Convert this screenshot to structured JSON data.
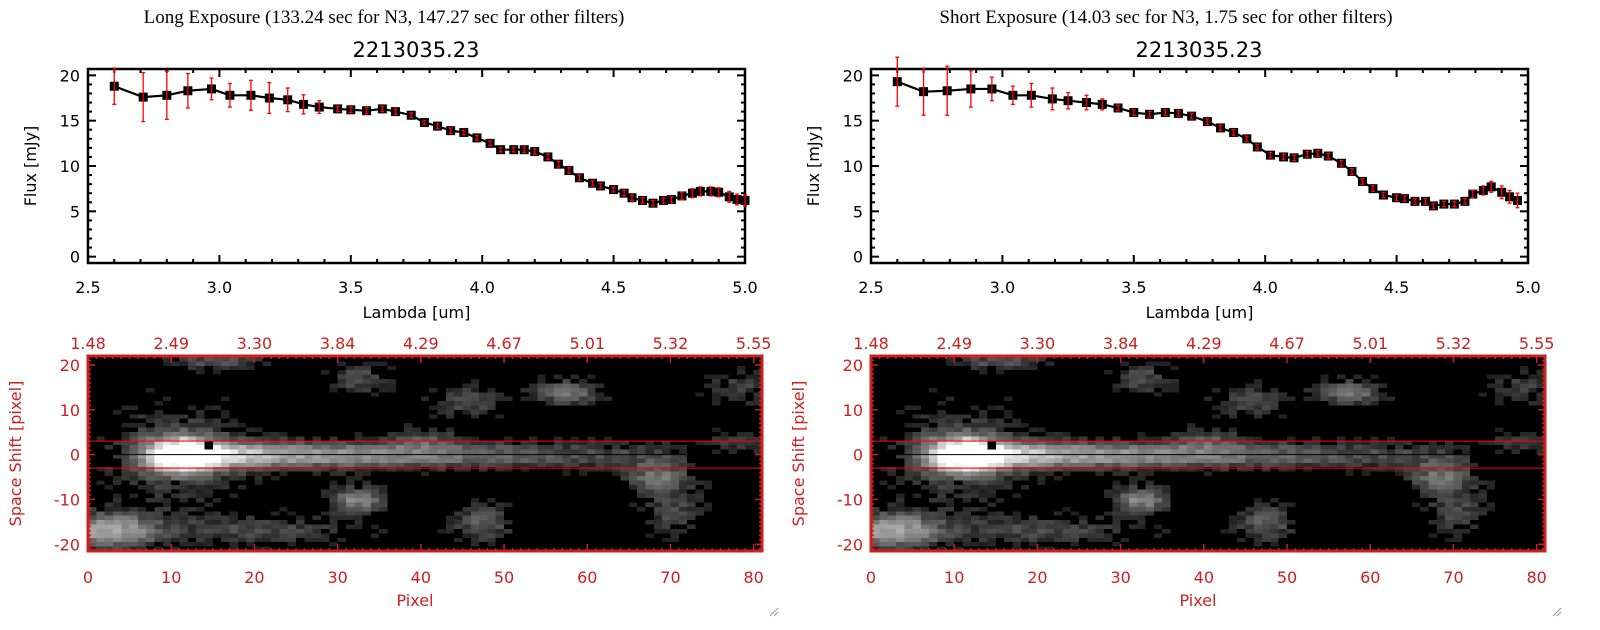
{
  "colors": {
    "data_line": "#000000",
    "error_bar": "#ff0000",
    "heatmap_axes": "#cc2020",
    "slit_lines": "#ff0000"
  },
  "panels": [
    {
      "title": "Long Exposure (133.24 sec for N3, 147.27 sec for other filters)",
      "object_name": "2213035.23"
    },
    {
      "title": "Short Exposure (14.03 sec for N3, 1.75 sec for other filters)",
      "object_name": "2213035.23"
    }
  ],
  "chart_data": [
    {
      "type": "line",
      "panel": "long",
      "title": "2213035.23",
      "xlabel": "Lambda [um]",
      "ylabel": "Flux [mJy]",
      "xlim": [
        2.5,
        5.0
      ],
      "ylim": [
        -0.7,
        20.7
      ],
      "xticks": [
        "2.5",
        "3.0",
        "3.5",
        "4.0",
        "4.5",
        "5.0"
      ],
      "yticks": [
        "0",
        "5",
        "10",
        "15",
        "20"
      ],
      "series": [
        {
          "name": "flux",
          "x": [
            2.6,
            2.71,
            2.8,
            2.88,
            2.97,
            3.04,
            3.12,
            3.19,
            3.26,
            3.32,
            3.38,
            3.45,
            3.5,
            3.56,
            3.62,
            3.67,
            3.73,
            3.78,
            3.83,
            3.88,
            3.93,
            3.98,
            4.03,
            4.07,
            4.12,
            4.16,
            4.2,
            4.25,
            4.29,
            4.33,
            4.37,
            4.42,
            4.45,
            4.5,
            4.54,
            4.57,
            4.61,
            4.65,
            4.69,
            4.72,
            4.76,
            4.8,
            4.83,
            4.87,
            4.9,
            4.94,
            4.97,
            5.0
          ],
          "y": [
            18.8,
            17.6,
            17.8,
            18.3,
            18.5,
            17.8,
            17.8,
            17.5,
            17.3,
            16.8,
            16.5,
            16.3,
            16.2,
            16.1,
            16.3,
            16.0,
            15.6,
            14.8,
            14.4,
            13.9,
            13.7,
            13.1,
            12.5,
            11.8,
            11.8,
            11.8,
            11.6,
            11.0,
            10.2,
            9.5,
            8.7,
            8.1,
            7.8,
            7.4,
            7.0,
            6.5,
            6.2,
            5.9,
            6.2,
            6.3,
            6.7,
            7.0,
            7.2,
            7.2,
            7.1,
            6.6,
            6.3,
            6.2
          ],
          "yerr": [
            2.0,
            2.7,
            2.65,
            1.9,
            1.2,
            1.3,
            1.65,
            1.7,
            1.3,
            1.05,
            0.7,
            0.3,
            0.3,
            0.35,
            0.3,
            0.3,
            0.25,
            0.2,
            0.25,
            0.3,
            0.25,
            0.25,
            0.25,
            0.25,
            0.25,
            0.3,
            0.3,
            0.3,
            0.3,
            0.3,
            0.3,
            0.3,
            0.25,
            0.25,
            0.3,
            0.3,
            0.3,
            0.3,
            0.3,
            0.3,
            0.4,
            0.5,
            0.5,
            0.5,
            0.5,
            0.6,
            0.6,
            0.6
          ]
        }
      ]
    },
    {
      "type": "line",
      "panel": "short",
      "title": "2213035.23",
      "xlabel": "Lambda [um]",
      "ylabel": "Flux [mJy]",
      "xlim": [
        2.5,
        5.0
      ],
      "ylim": [
        -0.7,
        20.7
      ],
      "xticks": [
        "2.5",
        "3.0",
        "3.5",
        "4.0",
        "4.5",
        "5.0"
      ],
      "yticks": [
        "0",
        "5",
        "10",
        "15",
        "20"
      ],
      "series": [
        {
          "name": "flux",
          "x": [
            2.6,
            2.7,
            2.79,
            2.88,
            2.96,
            3.04,
            3.11,
            3.19,
            3.25,
            3.32,
            3.38,
            3.44,
            3.5,
            3.56,
            3.62,
            3.67,
            3.72,
            3.78,
            3.83,
            3.88,
            3.93,
            3.97,
            4.02,
            4.07,
            4.11,
            4.16,
            4.2,
            4.24,
            4.29,
            4.33,
            4.37,
            4.41,
            4.45,
            4.5,
            4.53,
            4.57,
            4.61,
            4.64,
            4.68,
            4.72,
            4.76,
            4.79,
            4.83,
            4.86,
            4.9,
            4.93,
            4.96
          ],
          "y": [
            19.3,
            18.2,
            18.3,
            18.5,
            18.5,
            17.8,
            17.8,
            17.4,
            17.2,
            17.0,
            16.8,
            16.4,
            15.9,
            15.7,
            15.9,
            15.8,
            15.5,
            14.9,
            14.2,
            13.7,
            13.0,
            12.1,
            11.2,
            11.0,
            10.9,
            11.3,
            11.4,
            11.1,
            10.3,
            9.4,
            8.3,
            7.5,
            6.8,
            6.5,
            6.4,
            6.1,
            6.1,
            5.6,
            5.8,
            5.8,
            6.1,
            6.9,
            7.3,
            7.7,
            7.1,
            6.6,
            6.2
          ],
          "yerr": [
            2.7,
            2.6,
            2.7,
            2.0,
            1.3,
            1.0,
            1.3,
            1.2,
            0.9,
            0.8,
            0.6,
            0.3,
            0.3,
            0.3,
            0.3,
            0.3,
            0.3,
            0.3,
            0.3,
            0.3,
            0.3,
            0.3,
            0.3,
            0.3,
            0.3,
            0.3,
            0.3,
            0.3,
            0.3,
            0.3,
            0.3,
            0.3,
            0.3,
            0.3,
            0.3,
            0.3,
            0.3,
            0.3,
            0.3,
            0.3,
            0.3,
            0.4,
            0.5,
            0.6,
            0.7,
            0.7,
            0.8
          ]
        }
      ]
    },
    {
      "type": "heatmap",
      "panel": "long",
      "xlabel": "Pixel",
      "ylabel": "Space Shift [pixel]",
      "xlim": [
        0,
        81
      ],
      "ylim": [
        -21.5,
        22
      ],
      "xticks": [
        "0",
        "10",
        "20",
        "30",
        "40",
        "50",
        "60",
        "70",
        "80"
      ],
      "top_xticks": [
        "1.48",
        "2.49",
        "3.30",
        "3.84",
        "4.29",
        "4.67",
        "5.01",
        "5.32",
        "5.55"
      ],
      "yticks": [
        "-20",
        "-10",
        "0",
        "10",
        "20"
      ],
      "slit_lines": [
        3,
        -3
      ],
      "colormap": "grayscale"
    },
    {
      "type": "heatmap",
      "panel": "short",
      "xlabel": "Pixel",
      "ylabel": "Space Shift [pixel]",
      "xlim": [
        0,
        81
      ],
      "ylim": [
        -21.5,
        22
      ],
      "xticks": [
        "0",
        "10",
        "20",
        "30",
        "40",
        "50",
        "60",
        "70",
        "80"
      ],
      "top_xticks": [
        "1.48",
        "2.49",
        "3.30",
        "3.84",
        "4.29",
        "4.67",
        "5.01",
        "5.32",
        "5.55"
      ],
      "yticks": [
        "-20",
        "-10",
        "0",
        "10",
        "20"
      ],
      "slit_lines": [
        3,
        -3
      ],
      "colormap": "grayscale"
    }
  ]
}
